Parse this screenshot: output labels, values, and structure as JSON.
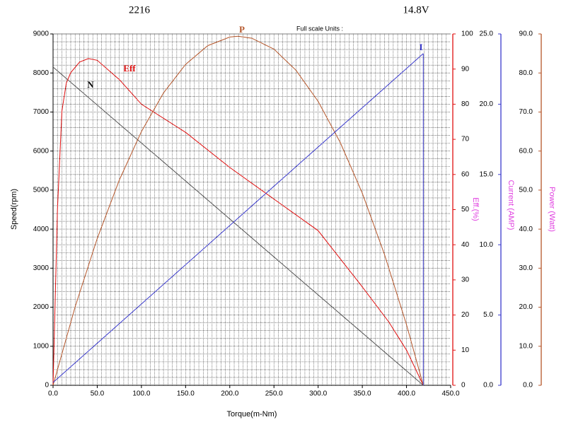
{
  "chart_data": {
    "type": "line",
    "title": "2216",
    "subtitle": "14.8V",
    "annotation": "Full scale Units :",
    "x_label": "Torque(m-Nm)",
    "y_label": "Speed(rpm)",
    "y2_label": "Eff.(%)",
    "y3_label": "Current (AMP)",
    "y4_label": "Power (Watt)",
    "grid": true,
    "xlim": [
      0,
      450
    ],
    "xticks": [
      {
        "value": 0,
        "label": "0.0"
      },
      {
        "value": 50,
        "label": "50.0"
      },
      {
        "value": 100,
        "label": "100.0"
      },
      {
        "value": 150,
        "label": "150.0"
      },
      {
        "value": 200,
        "label": "200.0"
      },
      {
        "value": 250,
        "label": "250.0"
      },
      {
        "value": 300,
        "label": "300.0"
      },
      {
        "value": 350,
        "label": "350.0"
      },
      {
        "value": 400,
        "label": "400.0"
      },
      {
        "value": 450,
        "label": "450.0"
      }
    ],
    "ylim": [
      0,
      9000
    ],
    "yticks": [
      0,
      1000,
      2000,
      3000,
      4000,
      5000,
      6000,
      7000,
      8000,
      9000
    ],
    "y2lim": [
      0,
      100
    ],
    "y2ticks": [
      0,
      10,
      20,
      30,
      40,
      50,
      60,
      70,
      80,
      90,
      100
    ],
    "y3lim": [
      0,
      25
    ],
    "y3ticks": [
      {
        "value": 0,
        "label": "0.0"
      },
      {
        "value": 5,
        "label": "5.0"
      },
      {
        "value": 10,
        "label": "10.0"
      },
      {
        "value": 15,
        "label": "15.0"
      },
      {
        "value": 20,
        "label": "20.0"
      },
      {
        "value": 25,
        "label": "25.0"
      }
    ],
    "y4lim": [
      0,
      90
    ],
    "y4ticks": [
      {
        "value": 0,
        "label": "0.0"
      },
      {
        "value": 10,
        "label": "10.0"
      },
      {
        "value": 20,
        "label": "20.0"
      },
      {
        "value": 30,
        "label": "30.0"
      },
      {
        "value": 40,
        "label": "40.0"
      },
      {
        "value": 50,
        "label": "50.0"
      },
      {
        "value": 60,
        "label": "60.0"
      },
      {
        "value": 70,
        "label": "70.0"
      },
      {
        "value": 80,
        "label": "80.0"
      },
      {
        "value": 90,
        "label": "90.0"
      }
    ],
    "series": [
      {
        "name": "N",
        "color": "#555555",
        "axis": "y",
        "x": [
          0,
          419
        ],
        "values": [
          8150,
          0
        ]
      },
      {
        "name": "Eff",
        "color": "#e01010",
        "axis": "y2",
        "x": [
          0,
          5,
          10,
          15,
          20,
          30,
          40,
          50,
          75,
          100,
          150,
          200,
          250,
          300,
          350,
          380,
          400,
          419
        ],
        "values": [
          0,
          50,
          78,
          86,
          89,
          92,
          93,
          92.5,
          87,
          80,
          72,
          62,
          53,
          44,
          28,
          18,
          10,
          0
        ]
      },
      {
        "name": "P",
        "color": "#b5562a",
        "axis": "y4",
        "x": [
          0,
          25,
          50,
          75,
          100,
          125,
          150,
          175,
          200,
          209.5,
          225,
          250,
          275,
          300,
          325,
          350,
          375,
          400,
          419
        ],
        "values": [
          0,
          20.1,
          37.6,
          52.6,
          65.0,
          74.9,
          82.2,
          87.0,
          89.2,
          89.4,
          88.9,
          86.1,
          80.7,
          72.7,
          62.2,
          49.2,
          33.6,
          15.5,
          0
        ]
      },
      {
        "name": "I",
        "color": "#3a3acc",
        "axis": "y3",
        "x": [
          0,
          419
        ],
        "values": [
          0.2,
          23.6
        ]
      }
    ]
  }
}
